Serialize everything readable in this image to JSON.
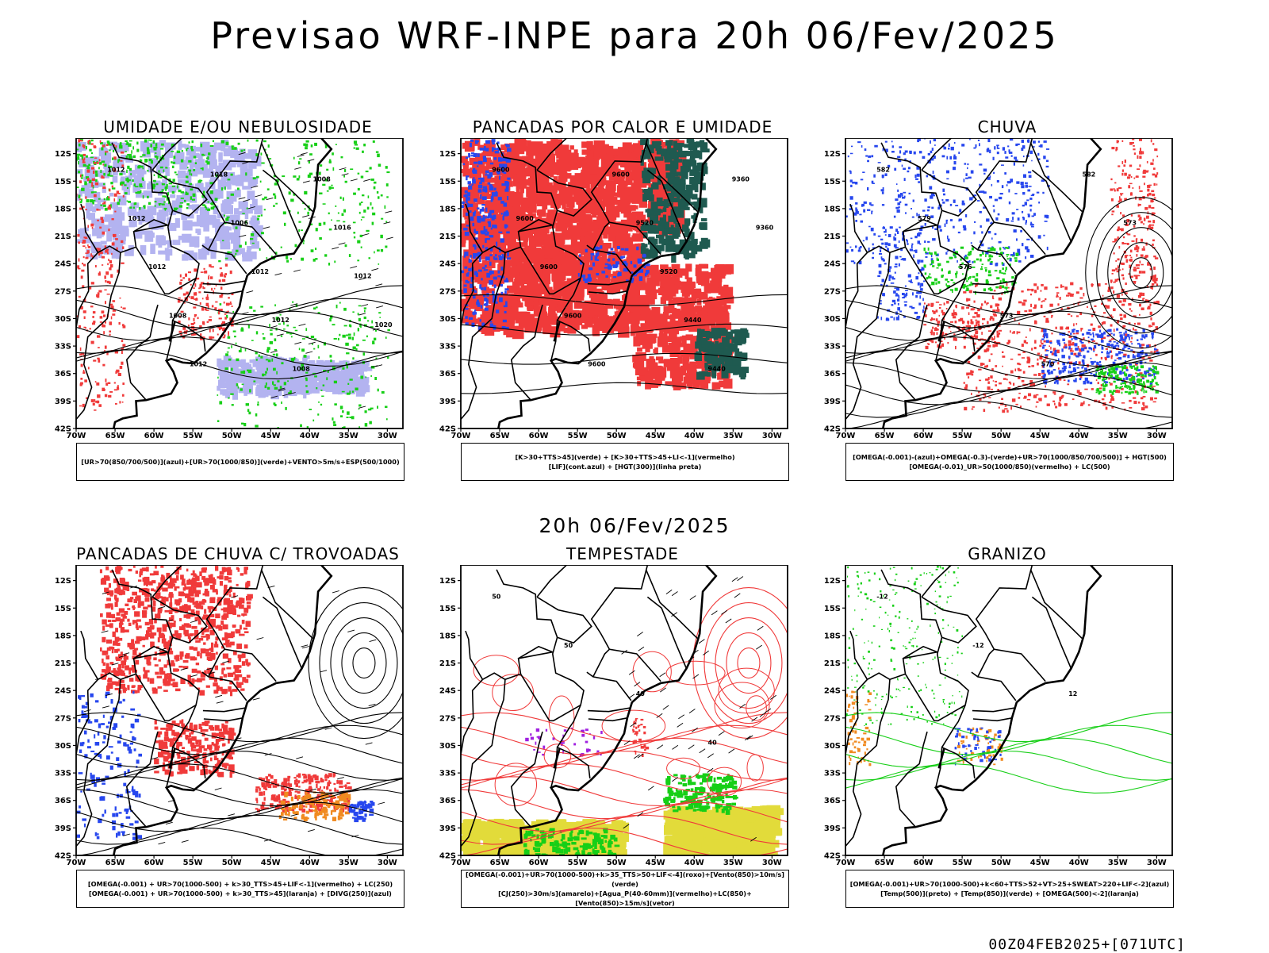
{
  "title": "Previsao WRF-INPE  para 20h 06/Fev/2025",
  "mid_date": "20h 06/Fev/2025",
  "footer": "00Z04FEB2025+[071UTC]",
  "colors": {
    "red": "#f03a3a",
    "blue": "#2747ee",
    "green": "#17cf17",
    "lavender": "#b3b3f0",
    "darkgreen": "#1f5a50",
    "yellow": "#e2db3a",
    "orange": "#f08a20",
    "purple": "#a020e0"
  },
  "axes": {
    "lat_ticks": [
      "12S",
      "15S",
      "18S",
      "21S",
      "24S",
      "27S",
      "30S",
      "33S",
      "36S",
      "39S",
      "42S"
    ],
    "lon_ticks": [
      "70W",
      "65W",
      "60W",
      "55W",
      "50W",
      "45W",
      "40W",
      "35W",
      "30W"
    ]
  },
  "chart_data": [
    {
      "type": "heatmap",
      "title": "UMIDADE E/OU NEBULOSIDADE",
      "legend": [
        "[UR>70(850/700/500)](azul)+[UR>70(1000/850)](verde)+VENTO>5m/s+ESP(500/1000)"
      ],
      "contour_labels": [
        "1012",
        "1012",
        "1012",
        "1008",
        "1012",
        "1018",
        "1006",
        "1012",
        "1012",
        "1008",
        "1008",
        "1016",
        "1012",
        "1020"
      ],
      "xlim": [
        -70,
        -30
      ],
      "ylim": [
        -42,
        -10
      ]
    },
    {
      "type": "heatmap",
      "title": "PANCADAS POR CALOR E UMIDADE",
      "legend": [
        "[K>30+TTS>45](verde) + [K>30+TTS>45+LI<-1](vermelho)",
        "[LIF](cont.azul) + [HGT(300)](linha preta)"
      ],
      "contour_labels": [
        "9600",
        "9600",
        "9600",
        "9600",
        "9600",
        "9600",
        "9520",
        "9520",
        "9440",
        "9440",
        "9360",
        "9360"
      ],
      "xlim": [
        -70,
        -30
      ],
      "ylim": [
        -42,
        -10
      ]
    },
    {
      "type": "heatmap",
      "title": "CHUVA",
      "legend": [
        "[OMEGA(-0.001)-(azul)+OMEGA(-0.3)-(verde)+UR>70(1000/850/700/500)] + HGT(500)",
        "[OMEGA(-0.01)_UR>50(1000/850)(vermelho) + LC(500)"
      ],
      "contour_labels": [
        "582",
        "579",
        "576",
        "573",
        "570",
        "582",
        "573"
      ],
      "xlim": [
        -70,
        -30
      ],
      "ylim": [
        -42,
        -10
      ]
    },
    {
      "type": "heatmap",
      "title": "PANCADAS DE CHUVA C/ TROVOADAS",
      "legend": [
        "[OMEGA(-0.001) + UR>70(1000-500) + k>30_TTS>45+LIF<-1](vermelho) + LC(250)",
        "[OMEGA(-0.001) + UR>70(1000-500) + k>30_TTS>45](laranja) + [DIVG(250)](azul)"
      ],
      "contour_labels": [],
      "xlim": [
        -70,
        -30
      ],
      "ylim": [
        -42,
        -10
      ]
    },
    {
      "type": "heatmap",
      "title": "TEMPESTADE",
      "legend": [
        "[OMEGA(-0.001)+UR>70(1000-500)+k>35_TTS>50+LIF<-4](roxo)+[Vento(850)>10m/s](verde)",
        "[CJ(250)>30m/s](amarelo)+[Agua_P(40-60mm)](vermelho)+LC(850)+[Vento(850)>15m/s](vetor)"
      ],
      "contour_labels": [
        "50",
        "50",
        "40",
        "40"
      ],
      "xlim": [
        -70,
        -30
      ],
      "ylim": [
        -42,
        -10
      ]
    },
    {
      "type": "heatmap",
      "title": "GRANIZO",
      "legend": [
        "[OMEGA(-0.001)+UR>70(1000-500)+k<60+TTS>52+VT>25+SWEAT>220+LIF<-2](azul)",
        "[Temp(500)](preto) + [Temp(850)](verde) + [OMEGA(500)<-2](laranja)"
      ],
      "contour_labels": [
        "-12",
        "-12",
        "12"
      ],
      "xlim": [
        -70,
        -30
      ],
      "ylim": [
        -42,
        -10
      ]
    }
  ]
}
